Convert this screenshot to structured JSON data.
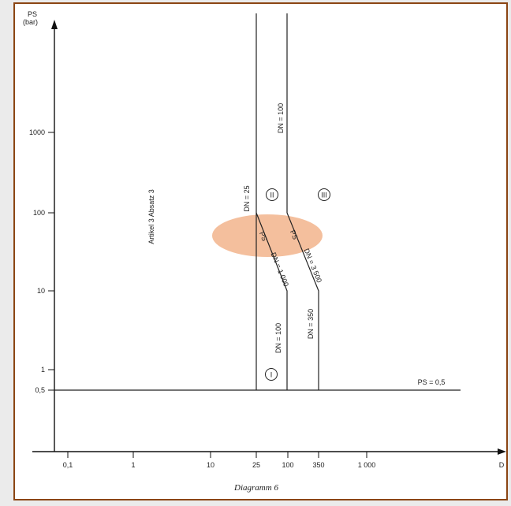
{
  "diagram": {
    "caption": "Diagramm 6",
    "y_axis": {
      "title_line1": "PS",
      "title_line2": "(bar)",
      "ticks": [
        "1000",
        "100",
        "10",
        "1",
        "0,5"
      ]
    },
    "x_axis": {
      "title": "D",
      "ticks": [
        "0,1",
        "1",
        "10",
        "25",
        "100",
        "350",
        "1 000"
      ]
    },
    "region_labels": {
      "article": "Artikel 3 Absatz 3",
      "category_1": "I",
      "category_2": "II",
      "category_3": "III"
    },
    "line_labels": {
      "dn25": "DN = 25",
      "dn100_top": "DN = 100",
      "dn100_bottom": "DN = 100",
      "dn350": "DN = 350",
      "ps_dn_1000_ps": "PS",
      "ps_dn_1000": "DN = 1 000",
      "ps_dn_3500_ps": "PS",
      "ps_dn_3500": "DN = 3 500",
      "ps05": "PS = 0,5"
    },
    "highlight_color": "#f2b48c"
  }
}
